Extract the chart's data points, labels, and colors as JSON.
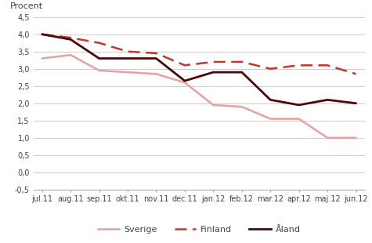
{
  "categories": [
    "jul.11",
    "aug.11",
    "sep.11",
    "okt.11",
    "nov.11",
    "dec.11",
    "jan.12",
    "feb.12",
    "mar.12",
    "apr.12",
    "maj.12",
    "jun.12"
  ],
  "sverige": [
    3.3,
    3.4,
    2.95,
    2.9,
    2.85,
    2.6,
    1.95,
    1.9,
    1.55,
    1.55,
    1.0,
    1.0
  ],
  "finland": [
    4.0,
    3.9,
    3.75,
    3.5,
    3.45,
    3.1,
    3.2,
    3.2,
    3.0,
    3.1,
    3.1,
    2.85
  ],
  "aland": [
    4.0,
    3.85,
    3.3,
    3.3,
    3.3,
    2.65,
    2.9,
    2.9,
    2.1,
    1.95,
    2.1,
    2.0
  ],
  "sverige_color": "#e8a0a0",
  "finland_color": "#c0392b",
  "aland_color": "#4a0808",
  "ylabel": "Procent",
  "ylim": [
    -0.5,
    4.5
  ],
  "yticks": [
    -0.5,
    0.0,
    0.5,
    1.0,
    1.5,
    2.0,
    2.5,
    3.0,
    3.5,
    4.0,
    4.5
  ],
  "ytick_labels": [
    "-0,5",
    "0,0",
    "0,5",
    "1,0",
    "1,5",
    "2,0",
    "2,5",
    "3,0",
    "3,5",
    "4,0",
    "4,5"
  ],
  "legend_labels": [
    "Sverige",
    "Finland",
    "Åland"
  ],
  "bg_color": "#ffffff",
  "grid_color": "#cccccc",
  "finland_dashes": [
    6,
    3
  ]
}
